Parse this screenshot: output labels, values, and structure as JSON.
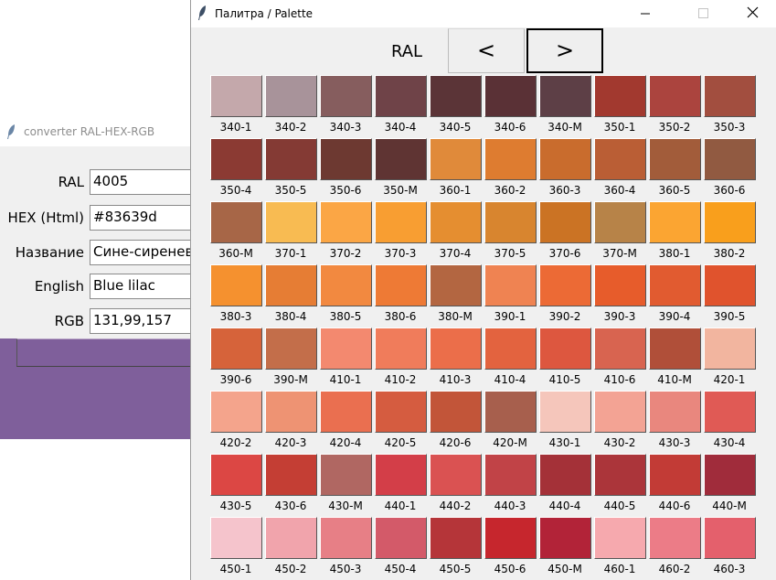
{
  "converter_window": {
    "title": "converter RAL-HEX-RGB",
    "fields": [
      {
        "label": "RAL",
        "value": "4005"
      },
      {
        "label": "HEX (Html)",
        "value": "#83639d"
      },
      {
        "label": "Название",
        "value": "Сине-сиреневый"
      },
      {
        "label": "English",
        "value": "Blue lilac"
      },
      {
        "label": "RGB",
        "value": "131,99,157"
      }
    ],
    "preview_color": "#7f5f9b"
  },
  "palette_window": {
    "title": "Палитра / Palette",
    "ral_label": "RAL",
    "prev_label": "<",
    "next_label": ">",
    "swatches": [
      {
        "code": "340-1",
        "color": "#c4a8ab"
      },
      {
        "code": "340-2",
        "color": "#a8939a"
      },
      {
        "code": "340-3",
        "color": "#865d5e"
      },
      {
        "code": "340-4",
        "color": "#6f4348"
      },
      {
        "code": "340-5",
        "color": "#5b3437"
      },
      {
        "code": "340-6",
        "color": "#5a3136"
      },
      {
        "code": "340-M",
        "color": "#5d3f46"
      },
      {
        "code": "350-1",
        "color": "#a2392f"
      },
      {
        "code": "350-2",
        "color": "#ab443e"
      },
      {
        "code": "350-3",
        "color": "#a24e3f"
      },
      {
        "code": "350-4",
        "color": "#8b3a33"
      },
      {
        "code": "350-5",
        "color": "#843a34"
      },
      {
        "code": "350-6",
        "color": "#6d3931"
      },
      {
        "code": "350-M",
        "color": "#5f3433"
      },
      {
        "code": "360-1",
        "color": "#e08a3a"
      },
      {
        "code": "360-2",
        "color": "#de7c30"
      },
      {
        "code": "360-3",
        "color": "#c96c2d"
      },
      {
        "code": "360-4",
        "color": "#ba5e35"
      },
      {
        "code": "360-5",
        "color": "#a25c3a"
      },
      {
        "code": "360-6",
        "color": "#915a41"
      },
      {
        "code": "360-M",
        "color": "#a76647"
      },
      {
        "code": "370-1",
        "color": "#f8bb52"
      },
      {
        "code": "370-2",
        "color": "#fba645"
      },
      {
        "code": "370-3",
        "color": "#f89e32"
      },
      {
        "code": "370-4",
        "color": "#e58e30"
      },
      {
        "code": "370-5",
        "color": "#d8852f"
      },
      {
        "code": "370-6",
        "color": "#cb7324"
      },
      {
        "code": "370-M",
        "color": "#b78348"
      },
      {
        "code": "380-1",
        "color": "#fba532"
      },
      {
        "code": "380-2",
        "color": "#f99f1c"
      },
      {
        "code": "380-3",
        "color": "#f5912f"
      },
      {
        "code": "380-4",
        "color": "#e67d34"
      },
      {
        "code": "380-5",
        "color": "#f28940"
      },
      {
        "code": "380-6",
        "color": "#ee7a35"
      },
      {
        "code": "380-M",
        "color": "#b36641"
      },
      {
        "code": "390-1",
        "color": "#ef8352"
      },
      {
        "code": "390-2",
        "color": "#ec6a35"
      },
      {
        "code": "390-3",
        "color": "#e75c2b"
      },
      {
        "code": "390-4",
        "color": "#e15b30"
      },
      {
        "code": "390-5",
        "color": "#e0532d"
      },
      {
        "code": "390-6",
        "color": "#d6633a"
      },
      {
        "code": "390-M",
        "color": "#c36e4a"
      },
      {
        "code": "410-1",
        "color": "#f3896f"
      },
      {
        "code": "410-2",
        "color": "#f07c5b"
      },
      {
        "code": "410-3",
        "color": "#eb6e4a"
      },
      {
        "code": "410-4",
        "color": "#e3633f"
      },
      {
        "code": "410-5",
        "color": "#dd573f"
      },
      {
        "code": "410-6",
        "color": "#d86450"
      },
      {
        "code": "410-M",
        "color": "#b04f39"
      },
      {
        "code": "420-1",
        "color": "#f2b59f"
      },
      {
        "code": "420-2",
        "color": "#f4a48c"
      },
      {
        "code": "420-3",
        "color": "#ee9373"
      },
      {
        "code": "420-4",
        "color": "#ea6f50"
      },
      {
        "code": "420-5",
        "color": "#d55c40"
      },
      {
        "code": "420-6",
        "color": "#c25539"
      },
      {
        "code": "420-M",
        "color": "#a75f4d"
      },
      {
        "code": "430-1",
        "color": "#f5c6bb"
      },
      {
        "code": "430-2",
        "color": "#f3a394"
      },
      {
        "code": "430-3",
        "color": "#e9877e"
      },
      {
        "code": "430-4",
        "color": "#e05a55"
      },
      {
        "code": "430-5",
        "color": "#dc4744"
      },
      {
        "code": "430-6",
        "color": "#c43e34"
      },
      {
        "code": "430-M",
        "color": "#b06762"
      },
      {
        "code": "440-1",
        "color": "#d33e48"
      },
      {
        "code": "440-2",
        "color": "#da5252"
      },
      {
        "code": "440-3",
        "color": "#c14347"
      },
      {
        "code": "440-4",
        "color": "#a43138"
      },
      {
        "code": "440-5",
        "color": "#ab353a"
      },
      {
        "code": "440-6",
        "color": "#c23b36"
      },
      {
        "code": "440-M",
        "color": "#a02c3b"
      },
      {
        "code": "450-1",
        "color": "#f5c4cc"
      },
      {
        "code": "450-2",
        "color": "#f1a4ac"
      },
      {
        "code": "450-3",
        "color": "#e77f86"
      },
      {
        "code": "450-4",
        "color": "#d35a69"
      },
      {
        "code": "450-5",
        "color": "#b53539"
      },
      {
        "code": "450-6",
        "color": "#c6262d"
      },
      {
        "code": "450-M",
        "color": "#b22338"
      },
      {
        "code": "460-1",
        "color": "#f6a9ae"
      },
      {
        "code": "460-2",
        "color": "#ec7c87"
      },
      {
        "code": "460-3",
        "color": "#e4606c"
      }
    ]
  }
}
